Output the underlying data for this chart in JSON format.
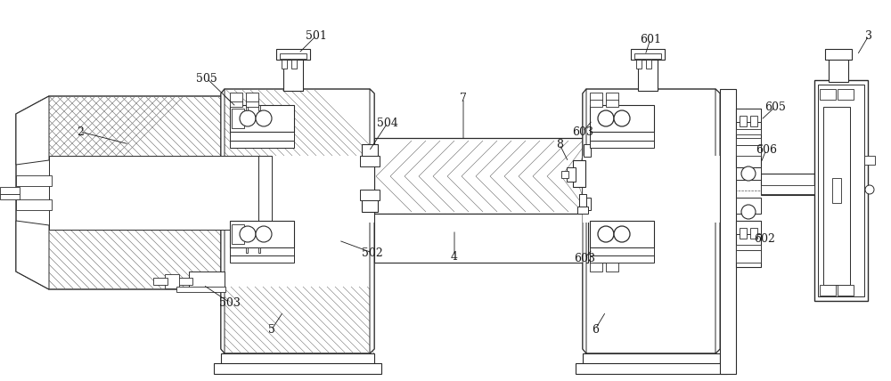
{
  "bg_color": "#ffffff",
  "lc": "#2a2a2a",
  "lc2": "#1a1a1a",
  "fig_width": 10.0,
  "fig_height": 4.28,
  "dpi": 100
}
